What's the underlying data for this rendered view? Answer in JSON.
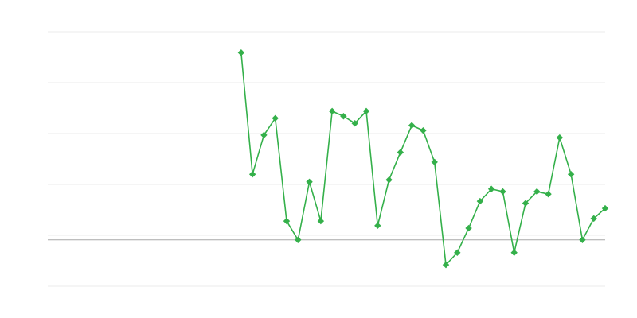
{
  "chart_data": {
    "type": "line",
    "title": "",
    "xlabel": "",
    "ylabel": "",
    "x_count": 50,
    "x_start_index": 17,
    "values": [
      3.59,
      1.2,
      1.97,
      2.3,
      0.28,
      -0.09,
      1.05,
      0.28,
      2.44,
      2.34,
      2.2,
      2.44,
      0.19,
      1.09,
      1.63,
      2.16,
      2.06,
      1.44,
      -0.58,
      -0.34,
      0.14,
      0.67,
      0.91,
      0.86,
      -0.34,
      0.63,
      0.86,
      0.81,
      1.92,
      1.2,
      -0.09,
      0.33,
      0.53
    ],
    "ylim": [
      -1,
      4
    ],
    "gridlines": [
      -1,
      0,
      1,
      2,
      3,
      4
    ],
    "reference_line": -0.09,
    "grid": true,
    "marker": "diamond",
    "colors": {
      "series": "#34b04a",
      "grid": "#ebebeb",
      "reference": "#a8a8a8"
    }
  }
}
